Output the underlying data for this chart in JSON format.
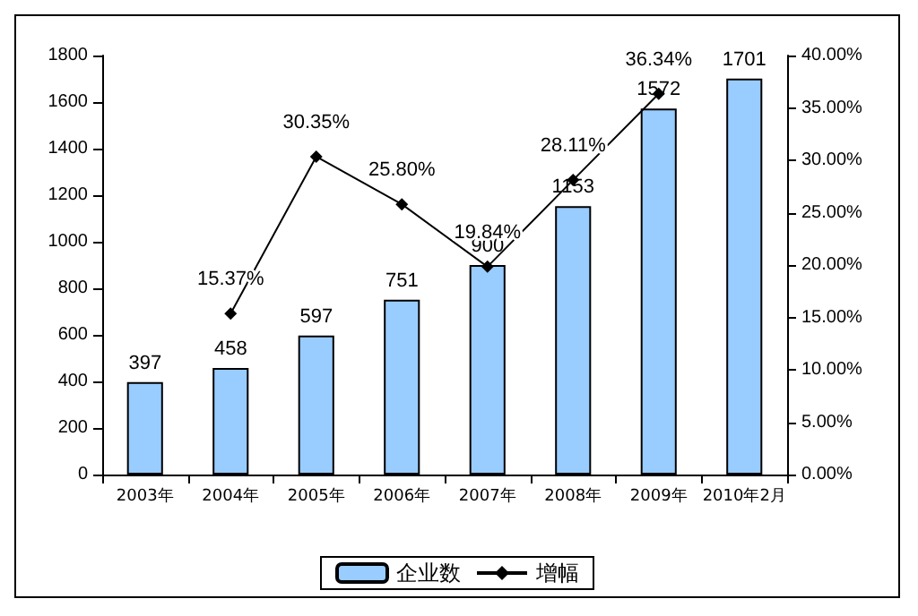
{
  "chart_data": {
    "type": "bar",
    "categories": [
      "2003年",
      "2004年",
      "2005年",
      "2006年",
      "2007年",
      "2008年",
      "2009年",
      "2010年2月"
    ],
    "series": [
      {
        "name": "企业数",
        "color": "#99ccff",
        "values": [
          397,
          458,
          597,
          751,
          900,
          1153,
          1572,
          1701
        ]
      },
      {
        "name": "增幅",
        "type": "line",
        "axis": "y2",
        "color": "#000000",
        "marker": "diamond",
        "values": [
          null,
          15.37,
          30.35,
          25.8,
          19.84,
          28.11,
          36.34,
          null
        ],
        "value_labels": [
          null,
          "15.37%",
          "30.35%",
          "25.80%",
          "19.84%",
          "28.11%",
          "36.34%",
          null
        ]
      }
    ],
    "data_labels": true,
    "ylim": [
      0,
      1800
    ],
    "yticks": [
      0,
      200,
      400,
      600,
      800,
      1000,
      1200,
      1400,
      1600,
      1800
    ],
    "y2lim": [
      0,
      40
    ],
    "y2ticks": [
      {
        "value": 0,
        "label": "0.00%"
      },
      {
        "value": 5,
        "label": "5.00%"
      },
      {
        "value": 10,
        "label": "10.00%"
      },
      {
        "value": 15,
        "label": "15.00%"
      },
      {
        "value": 20,
        "label": "20.00%"
      },
      {
        "value": 25,
        "label": "25.00%"
      },
      {
        "value": 30,
        "label": "30.00%"
      },
      {
        "value": 35,
        "label": "35.00%"
      },
      {
        "value": 40,
        "label": "40.00%"
      }
    ],
    "grid": false,
    "legend": "bottom"
  }
}
